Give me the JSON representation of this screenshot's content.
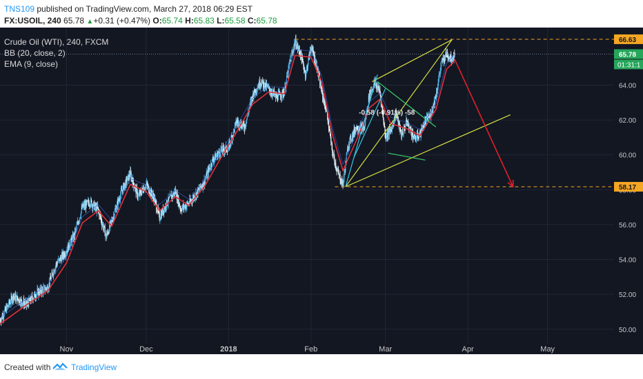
{
  "header": {
    "author": "TNS109",
    "published": "published on TradingView.com, March 27, 2018 06:29 EST",
    "symbol": "FX:USOIL, 240",
    "last": "65.78",
    "change": "+0.31 (+0.47%)",
    "ohlc": {
      "o_label": "O:",
      "o": "65.74",
      "h_label": "H:",
      "h": "65.83",
      "l_label": "L:",
      "l": "65.58",
      "c_label": "C:",
      "c": "65.78"
    }
  },
  "legend": {
    "title": "Crude Oil (WTI), 240, FXCM",
    "bb": "BB (20, close, 2)",
    "ema": "EMA (9, close)"
  },
  "footer": {
    "created": "Created with",
    "brand": "TradingView"
  },
  "colors": {
    "background": "#131722",
    "grid": "#232736",
    "up_candle": "#53b9ea",
    "down_candle": "#f2f2f2",
    "ema": "#e0303a",
    "bollinger": "#3d5fd6",
    "channel": "#d4e044",
    "flag": "#35d06f",
    "pole": "#36c8e6",
    "arrow": "#e0202a",
    "level_line": "#f5a623",
    "price_badge": "#26a65b"
  },
  "chart_data": {
    "type": "candlestick",
    "title": "Crude Oil (WTI), 240, FXCM",
    "y_axis": {
      "ticks": [
        50.0,
        52.0,
        54.0,
        56.0,
        58.0,
        60.0,
        62.0,
        64.0
      ],
      "ylim": [
        49.2,
        67.3
      ]
    },
    "x_axis": {
      "ticks": [
        "Nov",
        "Dec",
        "2018",
        "Feb",
        "Mar",
        "Apr",
        "May"
      ],
      "tick_dates": [
        "2017-11-01",
        "2017-12-01",
        "2018-01-01",
        "2018-02-01",
        "2018-03-01",
        "2018-04-01",
        "2018-05-01"
      ],
      "xlim": [
        "2017-10-07",
        "2018-05-26"
      ]
    },
    "grid": true,
    "price_path": [
      [
        "2017-10-07",
        50.5
      ],
      [
        "2017-10-12",
        51.9
      ],
      [
        "2017-10-17",
        51.4
      ],
      [
        "2017-10-21",
        52.1
      ],
      [
        "2017-10-25",
        52.4
      ],
      [
        "2017-10-28",
        53.7
      ],
      [
        "2017-11-01",
        54.5
      ],
      [
        "2017-11-04",
        55.4
      ],
      [
        "2017-11-07",
        57.0
      ],
      [
        "2017-11-10",
        57.3
      ],
      [
        "2017-11-13",
        56.8
      ],
      [
        "2017-11-16",
        55.3
      ],
      [
        "2017-11-18",
        56.2
      ],
      [
        "2017-11-22",
        58.0
      ],
      [
        "2017-11-25",
        58.9
      ],
      [
        "2017-11-28",
        57.6
      ],
      [
        "2017-12-01",
        58.3
      ],
      [
        "2017-12-04",
        57.5
      ],
      [
        "2017-12-06",
        56.4
      ],
      [
        "2017-12-09",
        57.3
      ],
      [
        "2017-12-12",
        57.9
      ],
      [
        "2017-12-14",
        56.9
      ],
      [
        "2017-12-17",
        57.2
      ],
      [
        "2017-12-20",
        57.8
      ],
      [
        "2017-12-23",
        58.5
      ],
      [
        "2017-12-26",
        59.7
      ],
      [
        "2017-12-29",
        60.2
      ],
      [
        "2018-01-01",
        60.4
      ],
      [
        "2018-01-04",
        61.9
      ],
      [
        "2018-01-07",
        61.6
      ],
      [
        "2018-01-10",
        63.4
      ],
      [
        "2018-01-13",
        64.2
      ],
      [
        "2018-01-16",
        63.8
      ],
      [
        "2018-01-19",
        63.3
      ],
      [
        "2018-01-22",
        63.6
      ],
      [
        "2018-01-24",
        65.3
      ],
      [
        "2018-01-26",
        66.5
      ],
      [
        "2018-01-28",
        65.8
      ],
      [
        "2018-01-30",
        64.6
      ],
      [
        "2018-02-01",
        66.2
      ],
      [
        "2018-02-03",
        65.2
      ],
      [
        "2018-02-05",
        63.6
      ],
      [
        "2018-02-07",
        62.4
      ],
      [
        "2018-02-09",
        60.2
      ],
      [
        "2018-02-11",
        59.0
      ],
      [
        "2018-02-13",
        58.3
      ],
      [
        "2018-02-15",
        60.6
      ],
      [
        "2018-02-18",
        61.6
      ],
      [
        "2018-02-21",
        61.5
      ],
      [
        "2018-02-23",
        63.5
      ],
      [
        "2018-02-25",
        64.1
      ],
      [
        "2018-02-27",
        63.6
      ],
      [
        "2018-03-01",
        61.1
      ],
      [
        "2018-03-03",
        61.4
      ],
      [
        "2018-03-05",
        62.4
      ],
      [
        "2018-03-07",
        61.1
      ],
      [
        "2018-03-09",
        61.9
      ],
      [
        "2018-03-12",
        60.9
      ],
      [
        "2018-03-14",
        61.2
      ],
      [
        "2018-03-16",
        61.9
      ],
      [
        "2018-03-18",
        62.3
      ],
      [
        "2018-03-20",
        63.4
      ],
      [
        "2018-03-22",
        65.2
      ],
      [
        "2018-03-24",
        65.8
      ],
      [
        "2018-03-26",
        65.5
      ],
      [
        "2018-03-27",
        65.78
      ]
    ],
    "ema_path": [
      [
        "2017-10-07",
        50.3
      ],
      [
        "2017-10-17",
        51.4
      ],
      [
        "2017-10-25",
        52.2
      ],
      [
        "2017-11-01",
        53.8
      ],
      [
        "2017-11-07",
        56.1
      ],
      [
        "2017-11-13",
        56.8
      ],
      [
        "2017-11-18",
        55.9
      ],
      [
        "2017-11-25",
        58.3
      ],
      [
        "2017-12-01",
        57.9
      ],
      [
        "2017-12-06",
        56.8
      ],
      [
        "2017-12-12",
        57.6
      ],
      [
        "2017-12-17",
        57.1
      ],
      [
        "2017-12-23",
        58.2
      ],
      [
        "2017-12-29",
        59.8
      ],
      [
        "2018-01-04",
        61.3
      ],
      [
        "2018-01-10",
        62.9
      ],
      [
        "2018-01-16",
        63.6
      ],
      [
        "2018-01-22",
        63.5
      ],
      [
        "2018-01-26",
        65.7
      ],
      [
        "2018-02-01",
        65.6
      ],
      [
        "2018-02-05",
        64.2
      ],
      [
        "2018-02-09",
        61.2
      ],
      [
        "2018-02-13",
        59.1
      ],
      [
        "2018-02-18",
        60.8
      ],
      [
        "2018-02-23",
        62.7
      ],
      [
        "2018-02-27",
        63.2
      ],
      [
        "2018-03-03",
        61.8
      ],
      [
        "2018-03-09",
        61.5
      ],
      [
        "2018-03-14",
        61.1
      ],
      [
        "2018-03-20",
        62.6
      ],
      [
        "2018-03-24",
        64.9
      ],
      [
        "2018-03-27",
        65.4
      ]
    ],
    "candles_per_day": 6,
    "annotations": {
      "horizontal_levels": [
        {
          "price": 66.63,
          "label": "66.63",
          "start": "2018-01-26",
          "end": "2018-05-26"
        },
        {
          "price": 58.17,
          "label": "58.17",
          "start": "2018-02-10",
          "end": "2018-05-26"
        }
      ],
      "last_price_label": "65.78",
      "countdown": "01:31:1",
      "ascending_channel": [
        {
          "from": [
            "2018-02-14",
            58.17
          ],
          "to": [
            "2018-03-26",
            66.6
          ]
        },
        {
          "from": [
            "2018-02-24",
            64.2
          ],
          "to": [
            "2018-03-26",
            66.6
          ]
        },
        {
          "from": [
            "2018-02-14",
            58.17
          ],
          "to": [
            "2018-04-17",
            62.3
          ]
        }
      ],
      "pole_lines": [
        {
          "from": [
            "2018-02-14",
            58.17
          ],
          "to": [
            "2018-02-26",
            64.6
          ]
        },
        {
          "from": [
            "2018-02-17",
            59.8
          ],
          "to": [
            "2018-03-01",
            63.8
          ]
        }
      ],
      "flag_lines": [
        {
          "from": [
            "2018-02-26",
            64.2
          ],
          "to": [
            "2018-03-20",
            61.6
          ]
        },
        {
          "from": [
            "2018-03-02",
            60.1
          ],
          "to": [
            "2018-03-16",
            59.7
          ]
        }
      ],
      "forecast_arrow": [
        [
          "2018-03-27",
          65.5
        ],
        [
          "2018-04-18",
          58.17
        ]
      ],
      "measure_label": "-0.58 (-0.91%) -58",
      "measure_anchor": [
        "2018-02-19",
        62.3
      ]
    }
  }
}
